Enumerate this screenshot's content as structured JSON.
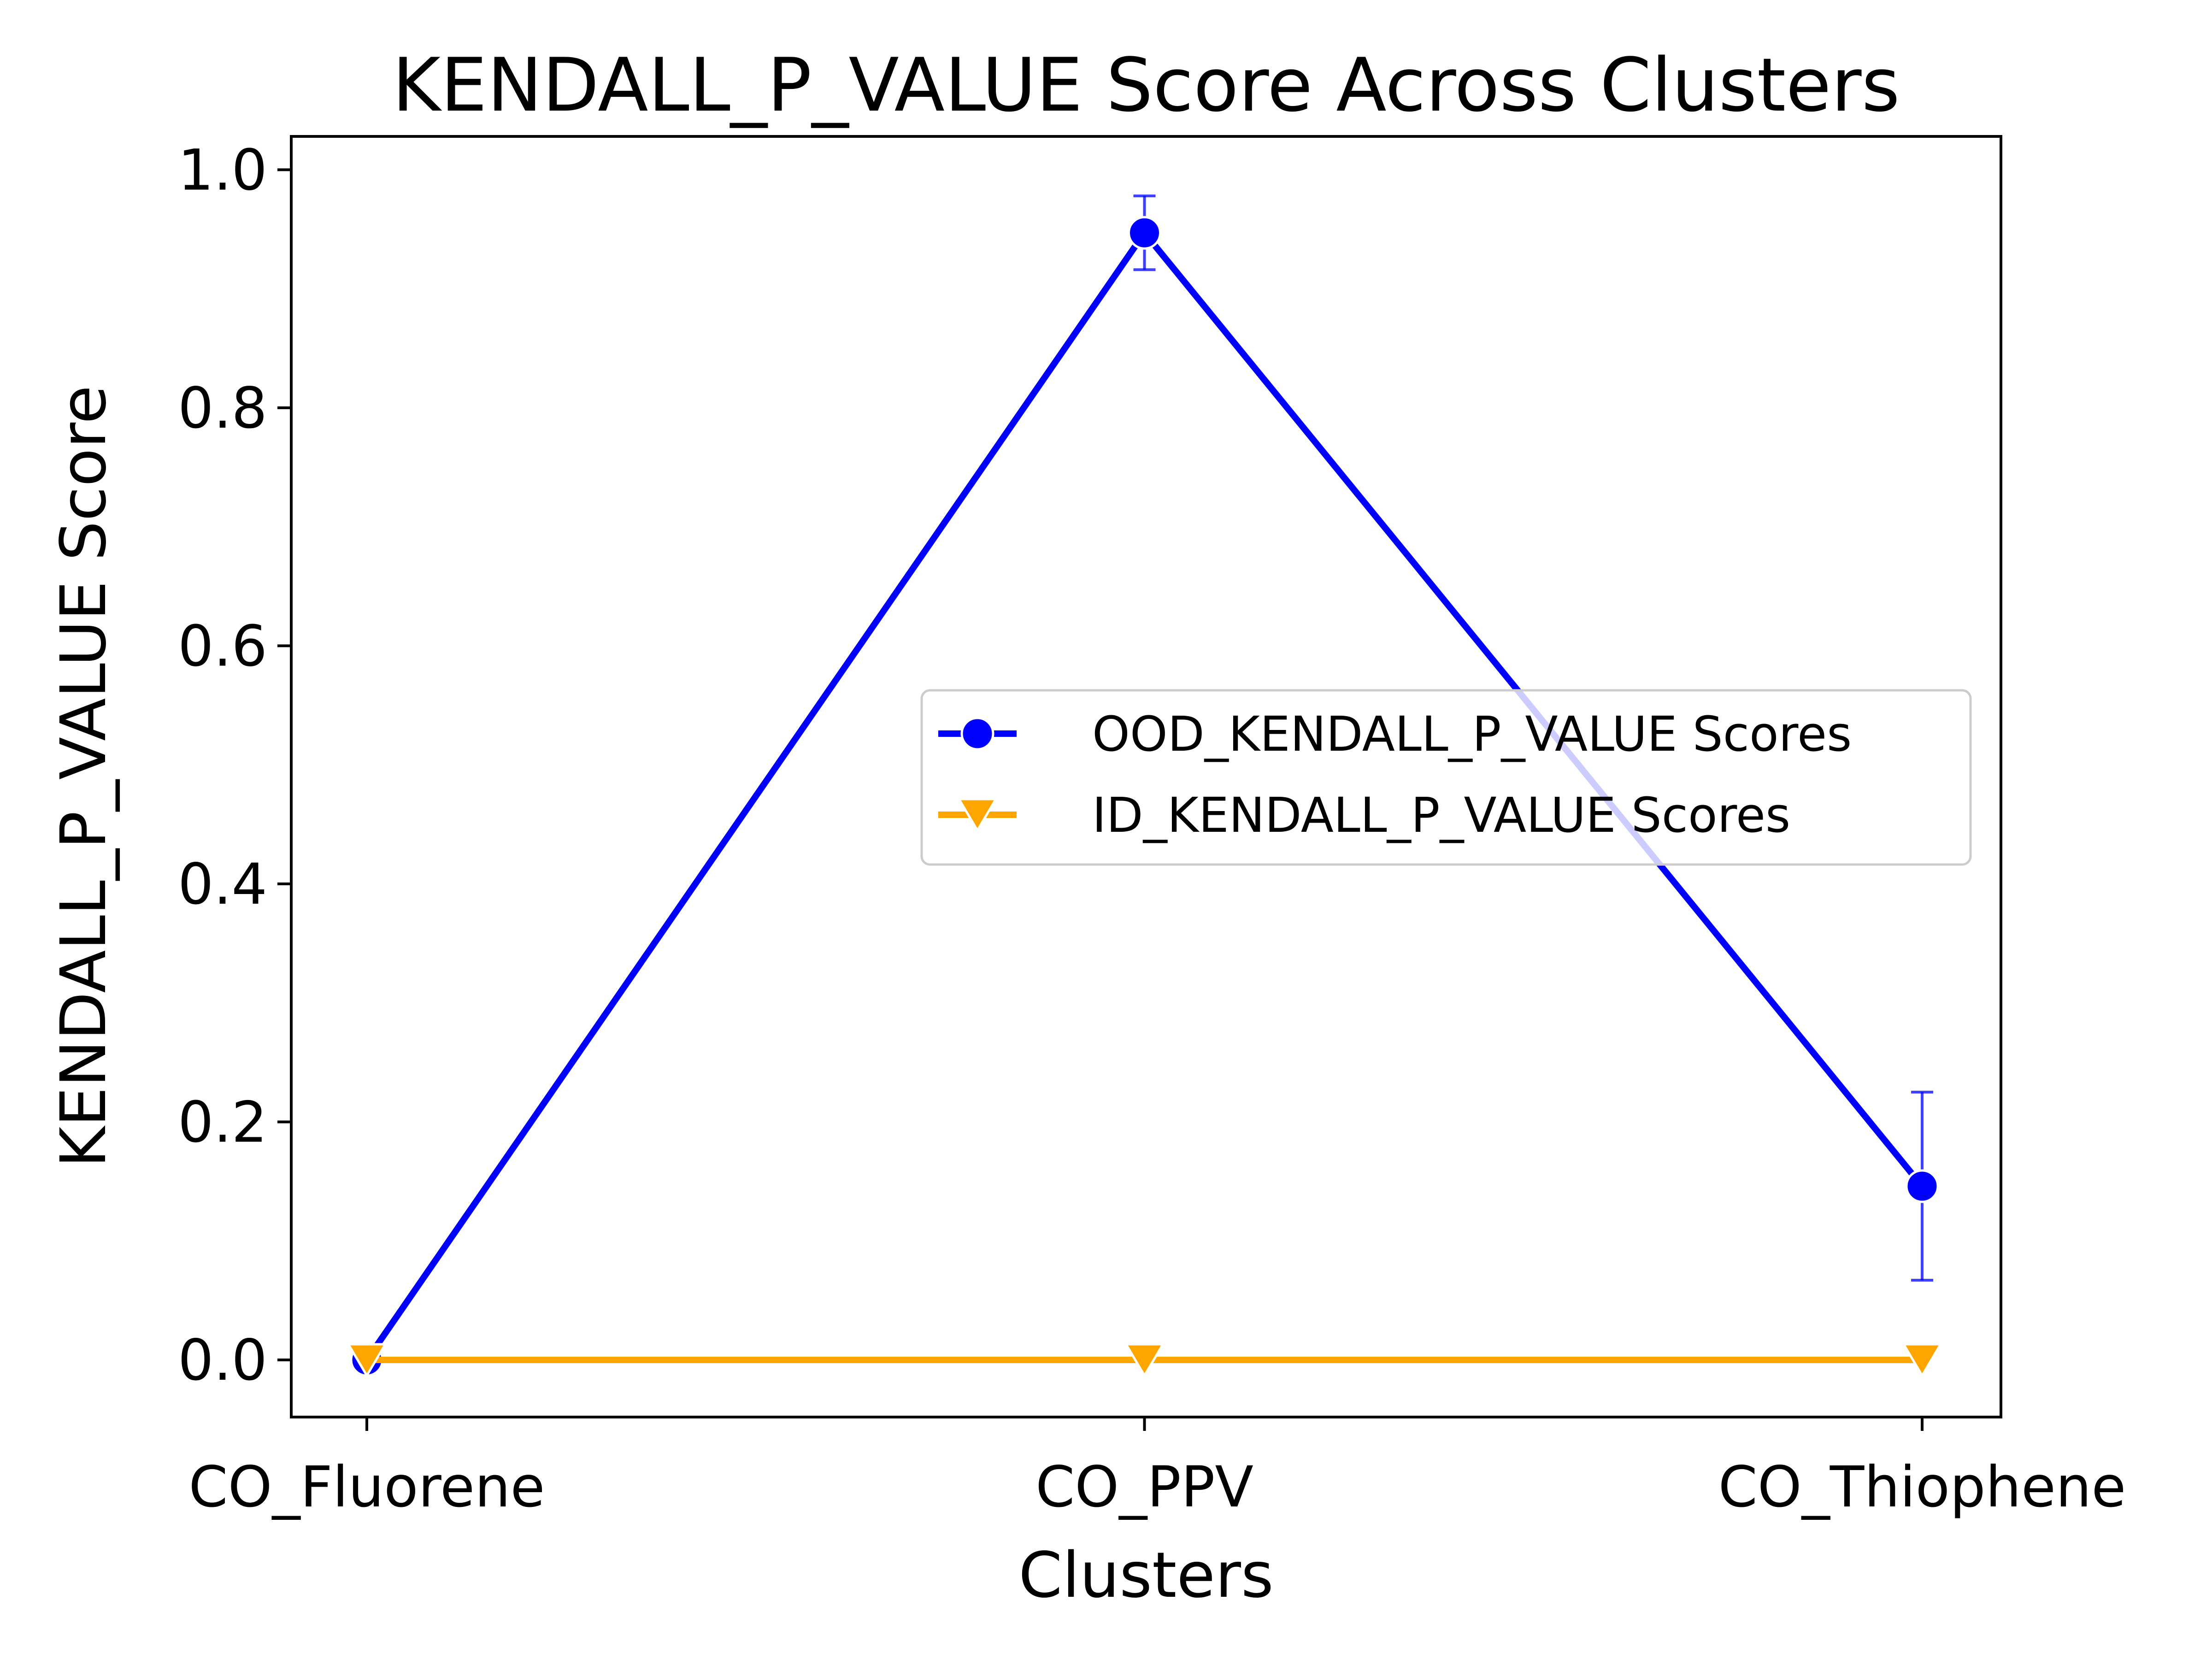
{
  "chart_data": {
    "type": "line",
    "title": "KENDALL_P_VALUE Score Across Clusters",
    "xlabel": "Clusters",
    "ylabel": "KENDALL_P_VALUE Score",
    "categories": [
      "CO_Fluorene",
      "CO_PPV",
      "CO_Thiophene"
    ],
    "ylim": [
      -0.048,
      1.028
    ],
    "yticks": [
      0.0,
      0.2,
      0.4,
      0.6,
      0.8,
      1.0
    ],
    "ytick_labels": [
      "0.0",
      "0.2",
      "0.4",
      "0.6",
      "0.8",
      "1.0"
    ],
    "grid": false,
    "legend_position": "center-right",
    "series": [
      {
        "name": "OOD_KENDALL_P_VALUE Scores",
        "color": "#0000ff",
        "marker": "circle",
        "values": [
          0.0,
          0.947,
          0.146
        ],
        "error": [
          0.0,
          0.031,
          0.079
        ]
      },
      {
        "name": "ID_KENDALL_P_VALUE Scores",
        "color": "#ffa500",
        "marker": "triangle-down",
        "values": [
          0.0,
          0.0,
          0.0
        ],
        "error": [
          0.0,
          0.0,
          0.0
        ]
      }
    ]
  }
}
